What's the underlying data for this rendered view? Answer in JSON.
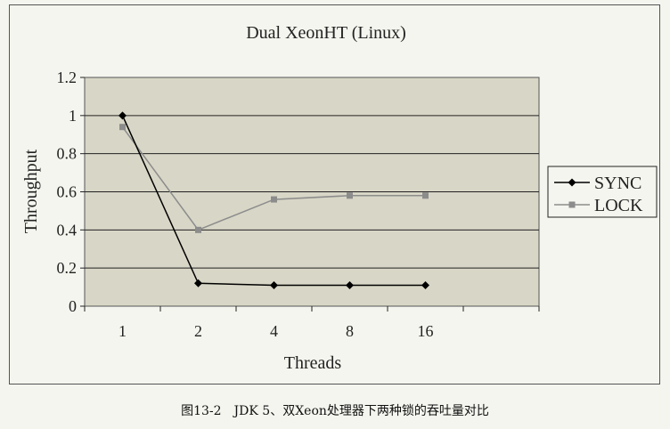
{
  "chart_data": {
    "type": "line",
    "title": "Dual XeonHT (Linux)",
    "xlabel": "Threads",
    "ylabel": "Throughput",
    "categories": [
      "1",
      "2",
      "4",
      "8",
      "16"
    ],
    "ylim": [
      0,
      1.2
    ],
    "yticks": [
      "0",
      "0.2",
      "0.4",
      "0.6",
      "0.8",
      "1",
      "1.2"
    ],
    "grid": true,
    "legend_position": "right",
    "series": [
      {
        "name": "SYNC",
        "marker": "diamond",
        "color": "#000000",
        "values": [
          1.0,
          0.12,
          0.11,
          0.11,
          0.11
        ]
      },
      {
        "name": "LOCK",
        "marker": "square",
        "color": "#8c8c8c",
        "values": [
          0.94,
          0.4,
          0.56,
          0.58,
          0.58
        ]
      }
    ]
  },
  "caption": "图13-2　JDK 5、双Xeon处理器下两种锁的吞吐量对比"
}
